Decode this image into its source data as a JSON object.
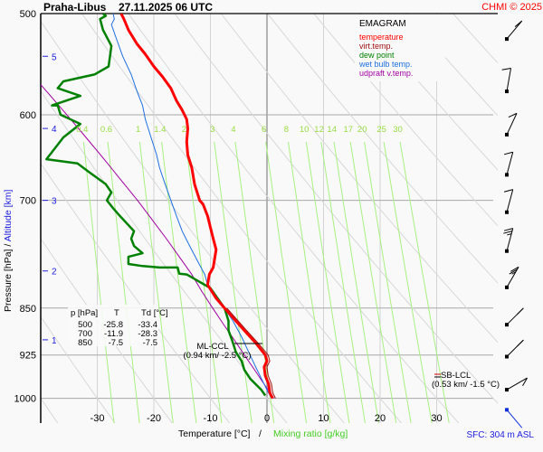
{
  "header": {
    "station": "Praha-Libus",
    "datetime": "27.11.2025 06 UTC",
    "copyright": "CHMI © 2025"
  },
  "legend": {
    "title": "EMAGRAM",
    "items": [
      {
        "label": "temperature",
        "color": "#ff0000"
      },
      {
        "label": "virt.temp.",
        "color": "#a01010"
      },
      {
        "label": "dew point",
        "color": "#008000"
      },
      {
        "label": "wet bulb temp.",
        "color": "#1e6fe0"
      },
      {
        "label": "udpraft v.temp.",
        "color": "#a000a0"
      }
    ]
  },
  "table": {
    "headers": [
      "p [hPa]",
      "T",
      "Td [°C]"
    ],
    "rows": [
      [
        "500",
        "-25.8",
        "-33.4"
      ],
      [
        "700",
        "-11.9",
        "-28.3"
      ],
      [
        "850",
        "-7.5",
        "-7.5"
      ]
    ]
  },
  "annotations": {
    "ml_ccl_label": "ML-CCL",
    "ml_ccl_value": "(0.94 km/ -2.5 °C)",
    "sb_lcl_label": "SB-LCL",
    "sb_lcl_value": "(0.53 km/ -1.5 °C)",
    "sfc": "SFC: 304 m ASL"
  },
  "axes": {
    "ylabel_pressure": "Pressure [hPa]",
    "ylabel_sep": " / ",
    "ylabel_altitude": "Altitude [km]",
    "xlabel_temp": "Temperature [°C]",
    "xlabel_sep": "/",
    "xlabel_mixing": "Mixing ratio [g/kg]"
  },
  "chart_data": {
    "type": "line",
    "title": "EMAGRAM",
    "xlabel": "Temperature [°C] / Mixing ratio [g/kg]",
    "ylabel": "Pressure [hPa] / Altitude [km]",
    "xlim": [
      -39,
      32
    ],
    "ylim": [
      1070,
      500
    ],
    "yscale": "log",
    "x_ticks": [
      -30,
      -20,
      -10,
      0,
      10,
      20,
      30
    ],
    "y_ticks": [
      500,
      600,
      700,
      850,
      925,
      1000
    ],
    "altitude_ticks_km": [
      {
        "km": 1,
        "p": 900
      },
      {
        "km": 2,
        "p": 795
      },
      {
        "km": 3,
        "p": 700
      },
      {
        "km": 4,
        "p": 615
      },
      {
        "km": 5,
        "p": 540
      }
    ],
    "mixing_ratio_labels": [
      "0.4",
      "0.6",
      "1",
      "1.4",
      "2",
      "3",
      "4",
      "6",
      "8",
      "10",
      "12",
      "14",
      "17",
      "20",
      "25",
      "30"
    ],
    "mixing_ratio_values": [
      0.4,
      0.6,
      1,
      1.4,
      2,
      3,
      4,
      6,
      8,
      10,
      12,
      14,
      17,
      20,
      25,
      30
    ],
    "series": [
      {
        "name": "temperature",
        "color": "#ff0000",
        "points": [
          [
            1,
            1000
          ],
          [
            0.5,
            990
          ],
          [
            0.3,
            975
          ],
          [
            -0.3,
            960
          ],
          [
            -0.5,
            945
          ],
          [
            0,
            935
          ],
          [
            -0.3,
            925
          ],
          [
            -2,
            905
          ],
          [
            -4,
            885
          ],
          [
            -6,
            865
          ],
          [
            -7.5,
            850
          ],
          [
            -9,
            835
          ],
          [
            -10.5,
            815
          ],
          [
            -10.2,
            800
          ],
          [
            -9.5,
            790
          ],
          [
            -9.3,
            780
          ],
          [
            -9.0,
            765
          ],
          [
            -9.5,
            750
          ],
          [
            -10.0,
            735
          ],
          [
            -10.5,
            720
          ],
          [
            -11.3,
            705
          ],
          [
            -11.9,
            700
          ],
          [
            -12.8,
            680
          ],
          [
            -13.3,
            660
          ],
          [
            -14,
            645
          ],
          [
            -14.2,
            630
          ],
          [
            -14,
            615
          ],
          [
            -14.2,
            605
          ],
          [
            -15,
            595
          ],
          [
            -16,
            585
          ],
          [
            -17,
            572
          ],
          [
            -18.5,
            560
          ],
          [
            -20,
            550
          ],
          [
            -21.5,
            538
          ],
          [
            -23,
            528
          ],
          [
            -24.5,
            515
          ],
          [
            -25.3,
            505
          ],
          [
            -25.8,
            500
          ]
        ]
      },
      {
        "name": "virt.temp.",
        "color": "#a01010",
        "points": [
          [
            1.5,
            1000
          ],
          [
            1.0,
            990
          ],
          [
            0.8,
            975
          ],
          [
            0.2,
            960
          ],
          [
            0,
            945
          ],
          [
            0.5,
            935
          ],
          [
            0.2,
            925
          ],
          [
            -1.6,
            905
          ],
          [
            -3.6,
            885
          ],
          [
            -5.6,
            865
          ],
          [
            -7.1,
            850
          ]
        ]
      },
      {
        "name": "dew point",
        "color": "#008000",
        "points": [
          [
            -0.3,
            995
          ],
          [
            -1,
            985
          ],
          [
            -2,
            975
          ],
          [
            -3,
            965
          ],
          [
            -4,
            950
          ],
          [
            -4.5,
            935
          ],
          [
            -5.5,
            920
          ],
          [
            -6.2,
            900
          ],
          [
            -6.8,
            885
          ],
          [
            -6.8,
            870
          ],
          [
            -7.5,
            850
          ],
          [
            -10,
            820
          ],
          [
            -14.2,
            800
          ],
          [
            -15.5,
            799
          ],
          [
            -15.8,
            790
          ],
          [
            -19,
            790
          ],
          [
            -22,
            788
          ],
          [
            -24.5,
            785
          ],
          [
            -24.5,
            775
          ],
          [
            -22,
            770
          ],
          [
            -23.5,
            760
          ],
          [
            -24,
            750
          ],
          [
            -23.5,
            740
          ],
          [
            -25,
            728
          ],
          [
            -26,
            720
          ],
          [
            -27.2,
            710
          ],
          [
            -28.3,
            700
          ],
          [
            -27.5,
            690
          ],
          [
            -28.5,
            680
          ],
          [
            -31.5,
            665
          ],
          [
            -33.5,
            655
          ],
          [
            -39,
            650
          ],
          [
            -36,
            625
          ],
          [
            -33,
            610
          ],
          [
            -36.5,
            600
          ],
          [
            -37,
            590
          ],
          [
            -38,
            590
          ],
          [
            -33,
            580
          ],
          [
            -37,
            572
          ],
          [
            -36,
            565
          ],
          [
            -30.5,
            558
          ],
          [
            -28,
            550
          ],
          [
            -27.5,
            530
          ],
          [
            -29,
            515
          ],
          [
            -29.5,
            505
          ],
          [
            -28.5,
            502
          ],
          [
            -29,
            500
          ]
        ]
      },
      {
        "name": "wet bulb temp.",
        "color": "#1e6fe0",
        "points": [
          [
            0.8,
            1000
          ],
          [
            0,
            985
          ],
          [
            -1,
            965
          ],
          [
            -2,
            945
          ],
          [
            -3,
            925
          ],
          [
            -4.5,
            895
          ],
          [
            -6,
            870
          ],
          [
            -7.5,
            850
          ],
          [
            -10.5,
            815
          ],
          [
            -11,
            800
          ],
          [
            -12,
            785
          ],
          [
            -13,
            770
          ],
          [
            -14,
            755
          ],
          [
            -15,
            740
          ],
          [
            -16,
            720
          ],
          [
            -17,
            700
          ],
          [
            -18,
            680
          ],
          [
            -19,
            660
          ],
          [
            -19.5,
            645
          ],
          [
            -20.5,
            625
          ],
          [
            -21.5,
            605
          ],
          [
            -22,
            590
          ],
          [
            -23,
            575
          ],
          [
            -24,
            558
          ],
          [
            -25.5,
            540
          ],
          [
            -26.5,
            525
          ],
          [
            -27.5,
            510
          ],
          [
            -27,
            505
          ],
          [
            -27.2,
            500
          ]
        ]
      },
      {
        "name": "udpraft v.temp.",
        "color": "#a000a0",
        "points": [
          [
            1.2,
            1000
          ],
          [
            -0.5,
            975
          ],
          [
            -2.2,
            950
          ],
          [
            -4,
            925
          ],
          [
            -5.8,
            900
          ],
          [
            -7.7,
            875
          ],
          [
            -9.6,
            850
          ],
          [
            -11.5,
            825
          ],
          [
            -13.3,
            800
          ],
          [
            -15.5,
            775
          ],
          [
            -17.8,
            750
          ],
          [
            -20.3,
            725
          ],
          [
            -22.9,
            700
          ],
          [
            -25.8,
            675
          ],
          [
            -28.8,
            650
          ],
          [
            -32,
            625
          ],
          [
            -35.4,
            600
          ],
          [
            -39,
            575
          ],
          [
            -42.8,
            550
          ]
        ]
      }
    ],
    "wind_barbs": [
      {
        "p": 505,
        "dir": 320,
        "speed_kt": 10
      },
      {
        "p": 555,
        "dir": 350,
        "speed_kt": 10
      },
      {
        "p": 600,
        "dir": 335,
        "speed_kt": 10
      },
      {
        "p": 645,
        "dir": 345,
        "speed_kt": 10
      },
      {
        "p": 690,
        "dir": 345,
        "speed_kt": 10
      },
      {
        "p": 740,
        "dir": 345,
        "speed_kt": 15
      },
      {
        "p": 790,
        "dir": 330,
        "speed_kt": 15
      },
      {
        "p": 845,
        "dir": 315,
        "speed_kt": 10
      },
      {
        "p": 895,
        "dir": 315,
        "speed_kt": 10
      },
      {
        "p": 950,
        "dir": 300,
        "speed_kt": 10
      },
      {
        "p": 985,
        "dir": 220,
        "speed_kt": 5
      }
    ]
  }
}
